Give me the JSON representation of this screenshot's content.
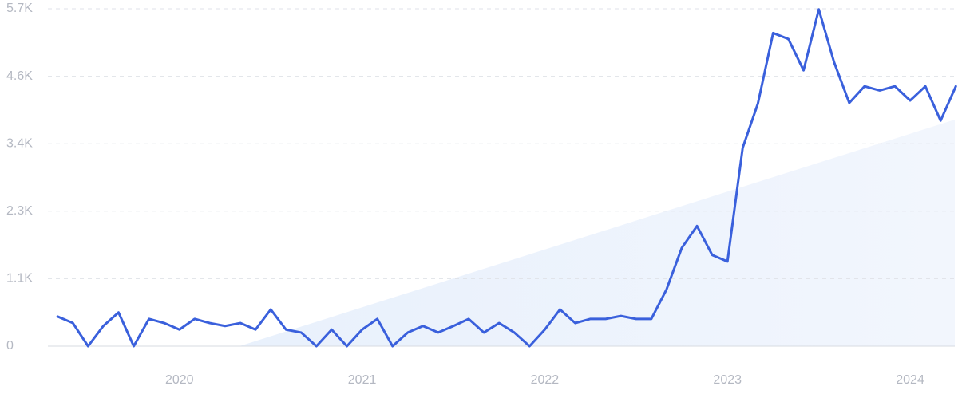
{
  "chart_data": {
    "type": "line",
    "x": [
      2019.3333,
      2019.4167,
      2019.5,
      2019.5833,
      2019.6667,
      2019.75,
      2019.8333,
      2019.9167,
      2020.0,
      2020.0833,
      2020.1667,
      2020.25,
      2020.3333,
      2020.4167,
      2020.5,
      2020.5833,
      2020.6667,
      2020.75,
      2020.8333,
      2020.9167,
      2021.0,
      2021.0833,
      2021.1667,
      2021.25,
      2021.3333,
      2021.4167,
      2021.5,
      2021.5833,
      2021.6667,
      2021.75,
      2021.8333,
      2021.9167,
      2022.0,
      2022.0833,
      2022.1667,
      2022.25,
      2022.3333,
      2022.4167,
      2022.5,
      2022.5833,
      2022.6667,
      2022.75,
      2022.8333,
      2022.9167,
      2023.0,
      2023.0833,
      2023.1667,
      2023.25,
      2023.3333,
      2023.4167,
      2023.5,
      2023.5833,
      2023.6667,
      2023.75,
      2023.8333,
      2023.9167,
      2024.0,
      2024.0833,
      2024.1667,
      2024.25
    ],
    "series": [
      {
        "color": "#3a60dc",
        "values": [
          500,
          390,
          0,
          340,
          570,
          0,
          460,
          390,
          280,
          460,
          390,
          340,
          390,
          280,
          620,
          280,
          230,
          0,
          280,
          0,
          280,
          460,
          0,
          230,
          340,
          230,
          340,
          460,
          230,
          390,
          230,
          0,
          280,
          620,
          390,
          460,
          460,
          510,
          460,
          460,
          960,
          1660,
          2030,
          1540,
          1430,
          3350,
          4100,
          5290,
          5190,
          4660,
          5690,
          4800,
          4110,
          4390,
          4320,
          4390,
          4150,
          4390,
          3810,
          4390
        ]
      }
    ],
    "xlim": [
      2019.28,
      2024.262
    ],
    "xticks": [
      2020,
      2021,
      2022,
      2023,
      2024
    ],
    "ylim": [
      0,
      5700
    ],
    "yticks": [
      0,
      {
        "value": 1140,
        "label": "1.1K"
      },
      {
        "value": 2280,
        "label": "2.3K"
      },
      {
        "value": 3420,
        "label": "3.4K"
      },
      {
        "value": 4560,
        "label": "4.6K"
      },
      {
        "value": 5700,
        "label": "5.7K"
      }
    ],
    "grid": true
  }
}
